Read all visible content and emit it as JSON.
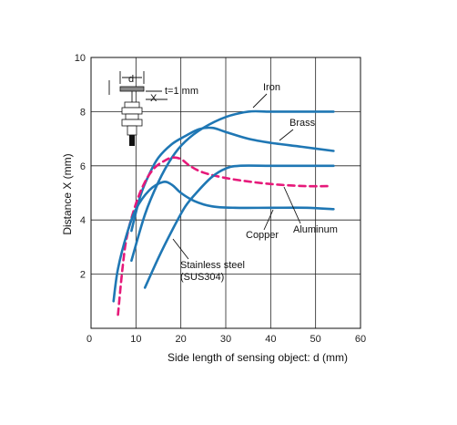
{
  "chart_data": {
    "type": "line",
    "xlabel": "Side length of sensing object: d (mm)",
    "ylabel": "Distance X (mm)",
    "xlim": [
      0,
      60
    ],
    "ylim": [
      0,
      10
    ],
    "xticks": [
      0,
      10,
      20,
      30,
      40,
      50,
      60
    ],
    "yticks": [
      2,
      4,
      6,
      8,
      10
    ],
    "grid": true,
    "annotations": {
      "sensor_d_label": "d",
      "sensor_x_label": "X",
      "sensor_t_label": "t=1 mm"
    },
    "series": [
      {
        "name": "Iron",
        "color": "#1f77b4",
        "dash": "solid",
        "points": [
          [
            9,
            2.5
          ],
          [
            12,
            4.2
          ],
          [
            15,
            5.4
          ],
          [
            18,
            6.3
          ],
          [
            21,
            6.9
          ],
          [
            25,
            7.4
          ],
          [
            30,
            7.8
          ],
          [
            35,
            8.0
          ],
          [
            40,
            8.0
          ],
          [
            48,
            8.0
          ],
          [
            54,
            8.0
          ]
        ]
      },
      {
        "name": "Brass",
        "color": "#1f77b4",
        "dash": "solid",
        "points": [
          [
            9,
            3.6
          ],
          [
            11,
            4.9
          ],
          [
            13,
            5.7
          ],
          [
            15,
            6.3
          ],
          [
            18,
            6.8
          ],
          [
            21,
            7.1
          ],
          [
            24,
            7.35
          ],
          [
            27,
            7.4
          ],
          [
            30,
            7.25
          ],
          [
            35,
            7.0
          ],
          [
            40,
            6.85
          ],
          [
            47,
            6.7
          ],
          [
            54,
            6.55
          ]
        ]
      },
      {
        "name": "Aluminum",
        "color": "#e6197a",
        "dash": "dashed",
        "points": [
          [
            6,
            0.5
          ],
          [
            7,
            2.2
          ],
          [
            8,
            3.4
          ],
          [
            10,
            4.6
          ],
          [
            12,
            5.4
          ],
          [
            14,
            5.9
          ],
          [
            16,
            6.15
          ],
          [
            18,
            6.3
          ],
          [
            20,
            6.25
          ],
          [
            22,
            6.0
          ],
          [
            25,
            5.75
          ],
          [
            30,
            5.55
          ],
          [
            36,
            5.4
          ],
          [
            42,
            5.3
          ],
          [
            48,
            5.25
          ],
          [
            53,
            5.25
          ]
        ]
      },
      {
        "name": "Copper",
        "color": "#1f77b4",
        "dash": "solid",
        "points": [
          [
            5,
            1.0
          ],
          [
            6,
            2.2
          ],
          [
            8,
            3.5
          ],
          [
            10,
            4.4
          ],
          [
            13,
            5.1
          ],
          [
            16,
            5.4
          ],
          [
            18,
            5.3
          ],
          [
            20,
            5.0
          ],
          [
            23,
            4.7
          ],
          [
            27,
            4.5
          ],
          [
            32,
            4.45
          ],
          [
            40,
            4.45
          ],
          [
            48,
            4.45
          ],
          [
            54,
            4.4
          ]
        ]
      },
      {
        "name": "Stainless steel (SUS304)",
        "color": "#1f77b4",
        "dash": "solid",
        "points": [
          [
            12,
            1.5
          ],
          [
            15,
            2.6
          ],
          [
            18,
            3.6
          ],
          [
            21,
            4.5
          ],
          [
            24,
            5.1
          ],
          [
            27,
            5.6
          ],
          [
            30,
            5.9
          ],
          [
            33,
            6.0
          ],
          [
            40,
            6.0
          ],
          [
            48,
            6.0
          ],
          [
            54,
            6.0
          ]
        ]
      }
    ],
    "labels": [
      {
        "text": "Iron",
        "key": "iron"
      },
      {
        "text": "Brass",
        "key": "brass"
      },
      {
        "text": "Copper",
        "key": "copper"
      },
      {
        "text": "Aluminum",
        "key": "aluminum"
      },
      {
        "text": "Stainless steel",
        "key": "sus_line1"
      },
      {
        "text": "(SUS304)",
        "key": "sus_line2"
      }
    ]
  }
}
